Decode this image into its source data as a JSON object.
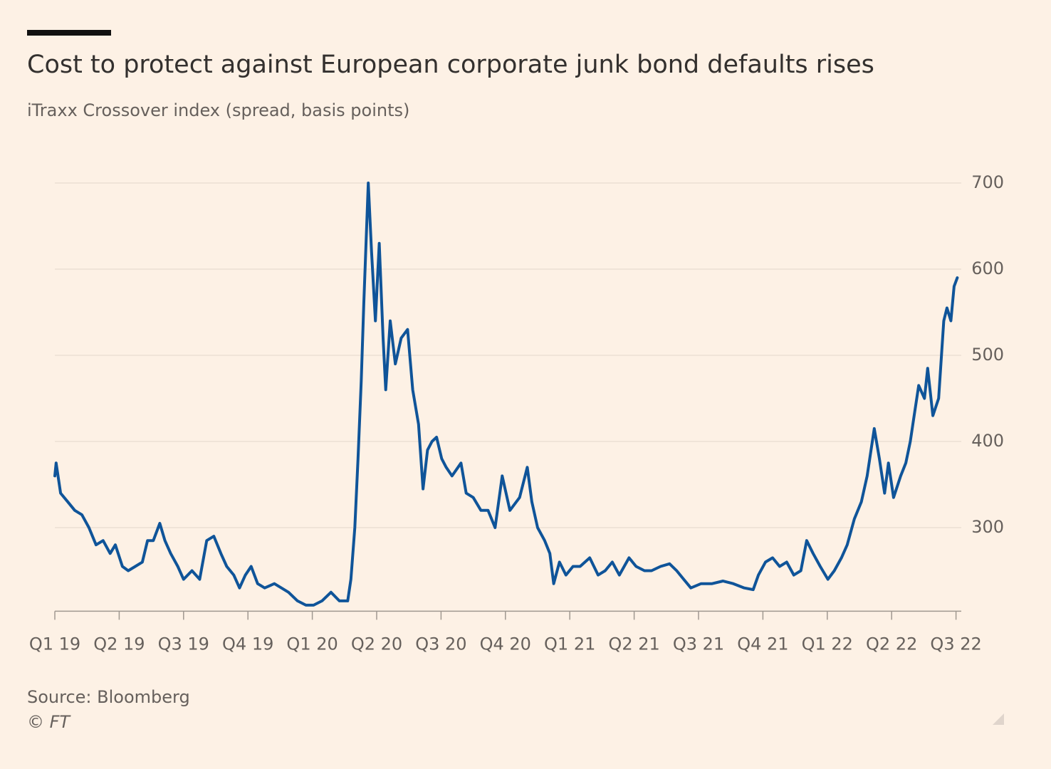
{
  "chart_data": {
    "type": "line",
    "title": "Cost to protect against European corporate junk bond defaults rises",
    "subtitle": "iTraxx Crossover index (spread, basis points)",
    "source": "Source: Bloomberg",
    "credit": "© FT",
    "xlim": [
      0,
      14.02
    ],
    "xticks": [
      {
        "value": 0,
        "label": "Q1 19"
      },
      {
        "value": 1,
        "label": "Q2 19"
      },
      {
        "value": 2,
        "label": "Q3 19"
      },
      {
        "value": 3,
        "label": "Q4 19"
      },
      {
        "value": 4,
        "label": "Q1 20"
      },
      {
        "value": 5,
        "label": "Q2 20"
      },
      {
        "value": 6,
        "label": "Q3 20"
      },
      {
        "value": 7,
        "label": "Q4 20"
      },
      {
        "value": 8,
        "label": "Q1 21"
      },
      {
        "value": 9,
        "label": "Q2 21"
      },
      {
        "value": 10,
        "label": "Q3 21"
      },
      {
        "value": 11,
        "label": "Q4 21"
      },
      {
        "value": 12,
        "label": "Q1 22"
      },
      {
        "value": 13,
        "label": "Q2 22"
      },
      {
        "value": 14,
        "label": "Q3 22"
      }
    ],
    "ylim": [
      203,
      712
    ],
    "yticks": [
      300,
      400,
      500,
      600,
      700
    ],
    "grid": true,
    "x": [
      0,
      0.02,
      0.09,
      0.2,
      0.31,
      0.42,
      0.53,
      0.64,
      0.75,
      0.86,
      0.94,
      1.05,
      1.14,
      1.25,
      1.36,
      1.44,
      1.53,
      1.63,
      1.71,
      1.8,
      1.91,
      2.0,
      2.13,
      2.25,
      2.36,
      2.47,
      2.58,
      2.67,
      2.78,
      2.87,
      2.96,
      3.05,
      3.15,
      3.26,
      3.41,
      3.52,
      3.63,
      3.77,
      3.9,
      4.02,
      4.15,
      4.29,
      4.42,
      4.55,
      4.6,
      4.66,
      4.71,
      4.76,
      4.8,
      4.83,
      4.87,
      4.92,
      4.98,
      5.04,
      5.1,
      5.14,
      5.21,
      5.29,
      5.38,
      5.48,
      5.56,
      5.65,
      5.72,
      5.79,
      5.86,
      5.93,
      6.01,
      6.08,
      6.17,
      6.31,
      6.39,
      6.5,
      6.62,
      6.73,
      6.84,
      6.95,
      7.07,
      7.22,
      7.34,
      7.41,
      7.5,
      7.61,
      7.69,
      7.75,
      7.84,
      7.94,
      8.05,
      8.16,
      8.31,
      8.44,
      8.55,
      8.66,
      8.77,
      8.92,
      9.03,
      9.16,
      9.27,
      9.41,
      9.55,
      9.66,
      9.77,
      9.88,
      10.04,
      10.21,
      10.38,
      10.54,
      10.71,
      10.85,
      10.93,
      11.04,
      11.15,
      11.26,
      11.37,
      11.48,
      11.59,
      11.68,
      11.78,
      11.89,
      12.01,
      12.11,
      12.22,
      12.31,
      12.42,
      12.53,
      12.62,
      12.73,
      12.81,
      12.89,
      12.95,
      13.03,
      13.14,
      13.22,
      13.29,
      13.34,
      13.42,
      13.51,
      13.56,
      13.64,
      13.73,
      13.81,
      13.86,
      13.92,
      13.97,
      14.02
    ],
    "series": [
      {
        "name": "iTraxx Crossover",
        "color": "#0f5499",
        "values": [
          360,
          375,
          340,
          330,
          320,
          315,
          300,
          280,
          285,
          270,
          280,
          255,
          250,
          255,
          260,
          285,
          285,
          305,
          285,
          270,
          255,
          240,
          250,
          240,
          285,
          290,
          270,
          255,
          245,
          230,
          245,
          255,
          235,
          230,
          235,
          230,
          225,
          215,
          210,
          210,
          215,
          225,
          215,
          215,
          240,
          300,
          380,
          470,
          560,
          620,
          700,
          620,
          540,
          630,
          520,
          460,
          540,
          490,
          520,
          530,
          460,
          420,
          345,
          390,
          400,
          405,
          380,
          370,
          360,
          375,
          340,
          335,
          320,
          320,
          300,
          360,
          320,
          335,
          370,
          330,
          300,
          285,
          270,
          235,
          260,
          245,
          255,
          255,
          265,
          245,
          250,
          260,
          245,
          265,
          255,
          250,
          250,
          255,
          258,
          250,
          240,
          230,
          235,
          235,
          238,
          235,
          230,
          228,
          245,
          260,
          265,
          255,
          260,
          245,
          250,
          285,
          270,
          255,
          240,
          250,
          265,
          280,
          310,
          330,
          360,
          415,
          380,
          340,
          375,
          335,
          360,
          375,
          400,
          425,
          465,
          450,
          485,
          430,
          450,
          540,
          555,
          540,
          580,
          590
        ]
      }
    ]
  }
}
